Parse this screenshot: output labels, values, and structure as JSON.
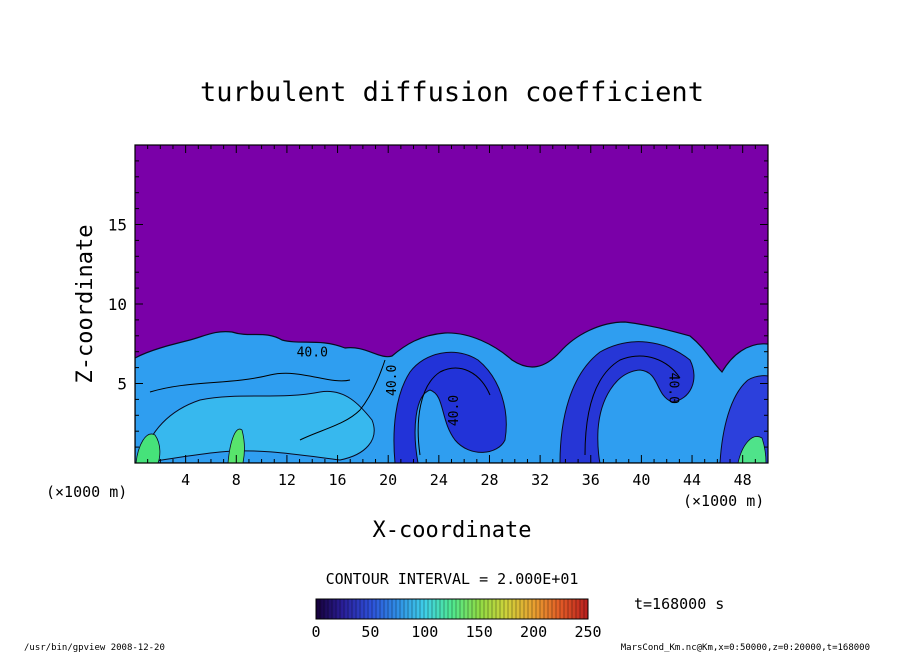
{
  "chart_data": {
    "type": "heatmap",
    "title": "turbulent diffusion coefficient",
    "xlabel": "X-coordinate",
    "ylabel": "Z-coordinate",
    "x_unit": "(×1000 m)",
    "y_unit": "(×1000 m)",
    "xlim": [
      0,
      50
    ],
    "ylim": [
      0,
      20
    ],
    "x_ticks": [
      4,
      8,
      12,
      16,
      20,
      24,
      28,
      32,
      36,
      40,
      44,
      48
    ],
    "y_ticks": [
      5,
      10,
      15
    ],
    "contour_interval_text": "CONTOUR INTERVAL = 2.000E+01",
    "contour_labels": [
      {
        "text": "40.0",
        "x": 14.0,
        "z": 6.7,
        "rotate": 0
      },
      {
        "text": "40.0",
        "x": 20.6,
        "z": 5.2,
        "rotate": -90
      },
      {
        "text": "40.0",
        "x": 25.5,
        "z": 3.3,
        "rotate": -90
      },
      {
        "text": "40.0",
        "x": 42.2,
        "z": 4.7,
        "rotate": 90
      }
    ],
    "colorbar": {
      "range": [
        0,
        250
      ],
      "ticks": [
        0,
        50,
        100,
        150,
        200,
        250
      ],
      "colormap": [
        "#160038",
        "#2a1f9a",
        "#2d4fd8",
        "#2f8fe6",
        "#3fd0e8",
        "#4fe88f",
        "#8fdc45",
        "#cfd23a",
        "#e8a030",
        "#e25a26",
        "#b81e1e"
      ]
    },
    "background_value_color": "#7a00a8",
    "time_label": "t=168000 s",
    "legend_placement": "bottom"
  },
  "footer": {
    "left": "/usr/bin/gpview  2008-12-20",
    "right": "MarsCond_Km.nc@Km,x=0:50000,z=0:20000,t=168000"
  }
}
